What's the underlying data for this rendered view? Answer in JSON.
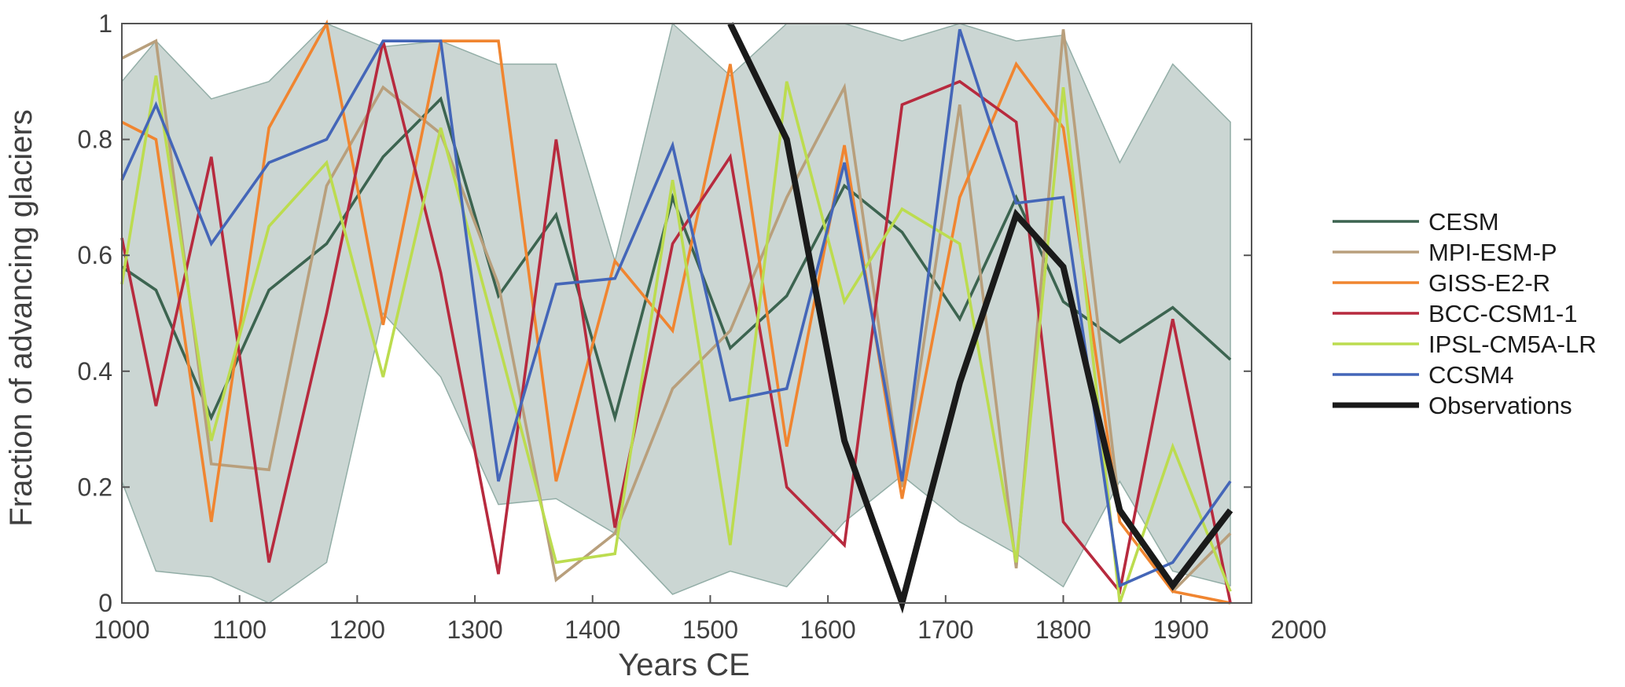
{
  "chart_data": {
    "type": "line",
    "title": "",
    "xlabel": "Years CE",
    "ylabel": "Fraction of advancing glaciers",
    "xlim": [
      1000,
      2000
    ],
    "ylim": [
      0,
      1
    ],
    "xticks": [
      1000,
      1100,
      1200,
      1300,
      1400,
      1500,
      1600,
      1700,
      1800,
      1900,
      2000
    ],
    "yticks": [
      0,
      0.2,
      0.4,
      0.6,
      0.8,
      1
    ],
    "ytick_labels": [
      "0",
      "0.2",
      "0.4",
      "0.6",
      "0.8",
      "1"
    ],
    "grid": false,
    "legend_position": "right-outside",
    "x": [
      1000,
      1029,
      1076,
      1125,
      1174,
      1222,
      1271,
      1320,
      1369,
      1419,
      1468,
      1517,
      1565,
      1614,
      1663,
      1712,
      1760,
      1800,
      1848,
      1893,
      1942
    ],
    "envelope": {
      "color": "#cbd6d3",
      "edge_color": "#93aea7",
      "upper": [
        0.9,
        0.97,
        0.87,
        0.9,
        1.0,
        0.96,
        0.97,
        0.93,
        0.93,
        0.59,
        1.0,
        0.91,
        1.0,
        1.0,
        0.97,
        1.0,
        0.97,
        0.98,
        0.76,
        0.93,
        0.83
      ],
      "lower": [
        0.21,
        0.055,
        0.045,
        0.0,
        0.07,
        0.5,
        0.39,
        0.17,
        0.18,
        0.12,
        0.015,
        0.055,
        0.028,
        0.14,
        0.22,
        0.14,
        0.085,
        0.028,
        0.21,
        0.055,
        0.03
      ]
    },
    "series": [
      {
        "name": "CESM",
        "color": "#3c6450",
        "width": 3.6,
        "values": [
          0.58,
          0.54,
          0.32,
          0.54,
          0.62,
          0.77,
          0.87,
          0.53,
          0.67,
          0.32,
          0.7,
          0.44,
          0.53,
          0.72,
          0.64,
          0.49,
          0.7,
          0.52,
          0.45,
          0.51,
          0.42
        ]
      },
      {
        "name": "MPI-ESM-P",
        "color": "#b89f7c",
        "width": 3.6,
        "values": [
          0.94,
          0.97,
          0.24,
          0.23,
          0.72,
          0.89,
          0.81,
          0.55,
          0.04,
          0.12,
          0.37,
          0.47,
          0.7,
          0.89,
          0.2,
          0.86,
          0.06,
          0.99,
          0.16,
          0.02,
          0.12
        ]
      },
      {
        "name": "GISS-E2-R",
        "color": "#f08530",
        "width": 3.6,
        "values": [
          0.83,
          0.8,
          0.14,
          0.82,
          1.0,
          0.48,
          0.97,
          0.97,
          0.21,
          0.59,
          0.47,
          0.93,
          0.27,
          0.79,
          0.18,
          0.7,
          0.93,
          0.82,
          0.14,
          0.02,
          0.0
        ]
      },
      {
        "name": "BCC-CSM1-1",
        "color": "#b72a3e",
        "width": 3.6,
        "values": [
          0.63,
          0.34,
          0.77,
          0.07,
          0.5,
          0.97,
          0.57,
          0.05,
          0.8,
          0.13,
          0.62,
          0.77,
          0.2,
          0.1,
          0.86,
          0.9,
          0.83,
          0.14,
          0.02,
          0.49,
          0.0
        ]
      },
      {
        "name": "IPSL-CM5A-LR",
        "color": "#bcdc4f",
        "width": 3.6,
        "values": [
          0.55,
          0.91,
          0.28,
          0.65,
          0.76,
          0.39,
          0.82,
          0.45,
          0.07,
          0.085,
          0.73,
          0.1,
          0.9,
          0.52,
          0.68,
          0.62,
          0.07,
          0.89,
          0.0,
          0.27,
          0.02
        ]
      },
      {
        "name": "CCSM4",
        "color": "#4466b8",
        "width": 3.6,
        "values": [
          0.73,
          0.86,
          0.62,
          0.76,
          0.8,
          0.97,
          0.97,
          0.21,
          0.55,
          0.56,
          0.79,
          0.35,
          0.37,
          0.76,
          0.21,
          0.99,
          0.69,
          0.7,
          0.03,
          0.07,
          0.21
        ]
      },
      {
        "name": "Observations",
        "color": "#1a1a1a",
        "width": 8,
        "x": [
          1517,
          1565,
          1614,
          1663,
          1712,
          1760,
          1800,
          1848,
          1893,
          1942
        ],
        "values": [
          1.0,
          0.8,
          0.28,
          0.0,
          0.38,
          0.67,
          0.58,
          0.16,
          0.03,
          0.16
        ]
      }
    ]
  }
}
